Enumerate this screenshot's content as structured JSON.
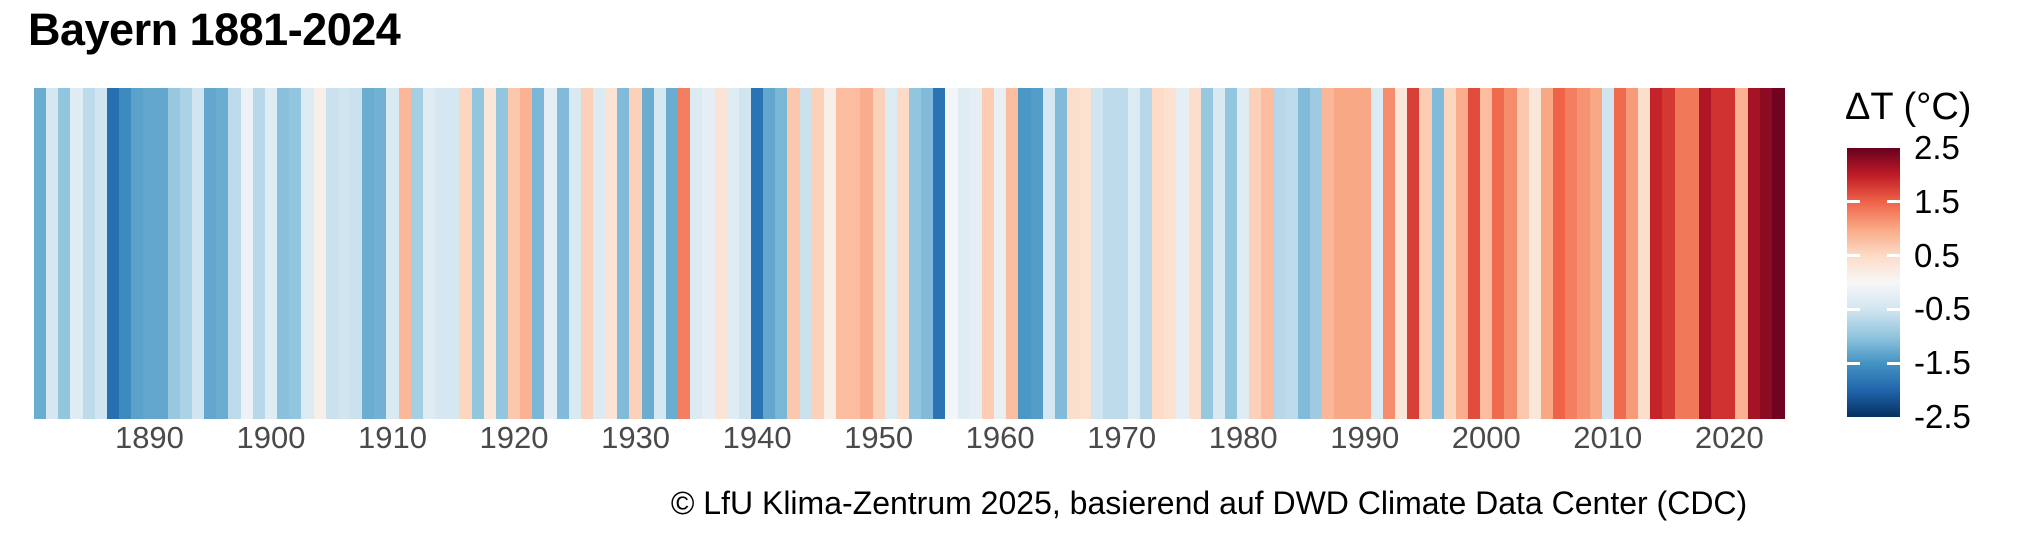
{
  "header": {
    "title": "Bayern 1881-2024"
  },
  "caption": {
    "text": "© LfU Klima-Zentrum 2025, basierend auf DWD Climate Data Center (CDC)"
  },
  "legend": {
    "title": "ΔT (°C)",
    "tick_labels": [
      "2.5",
      "1.5",
      "0.5",
      "-0.5",
      "-1.5",
      "-2.5"
    ],
    "tick_values": [
      2.5,
      1.5,
      0.5,
      -0.5,
      -1.5,
      -2.5
    ]
  },
  "chart_data": {
    "type": "heatmap",
    "subtype": "warming-stripes",
    "title": "Bayern 1881-2024",
    "unit": "°C",
    "value_label": "ΔT (°C)",
    "value_range": [
      -2.5,
      2.5
    ],
    "start_year": 1881,
    "end_year": 2024,
    "x_tick_labels": [
      "1890",
      "1900",
      "1910",
      "1920",
      "1930",
      "1940",
      "1950",
      "1960",
      "1970",
      "1980",
      "1990",
      "2000",
      "2010",
      "2020"
    ],
    "grid": false,
    "legend_position": "right",
    "years": [
      1881,
      1882,
      1883,
      1884,
      1885,
      1886,
      1887,
      1888,
      1889,
      1890,
      1891,
      1892,
      1893,
      1894,
      1895,
      1896,
      1897,
      1898,
      1899,
      1900,
      1901,
      1902,
      1903,
      1904,
      1905,
      1906,
      1907,
      1908,
      1909,
      1910,
      1911,
      1912,
      1913,
      1914,
      1915,
      1916,
      1917,
      1918,
      1919,
      1920,
      1921,
      1922,
      1923,
      1924,
      1925,
      1926,
      1927,
      1928,
      1929,
      1930,
      1931,
      1932,
      1933,
      1934,
      1935,
      1936,
      1937,
      1938,
      1939,
      1940,
      1941,
      1942,
      1943,
      1944,
      1945,
      1946,
      1947,
      1948,
      1949,
      1950,
      1951,
      1952,
      1953,
      1954,
      1955,
      1956,
      1957,
      1958,
      1959,
      1960,
      1961,
      1962,
      1963,
      1964,
      1965,
      1966,
      1967,
      1968,
      1969,
      1970,
      1971,
      1972,
      1973,
      1974,
      1975,
      1976,
      1977,
      1978,
      1979,
      1980,
      1981,
      1982,
      1983,
      1984,
      1985,
      1986,
      1987,
      1988,
      1989,
      1990,
      1991,
      1992,
      1993,
      1994,
      1995,
      1996,
      1997,
      1998,
      1999,
      2000,
      2001,
      2002,
      2003,
      2004,
      2005,
      2006,
      2007,
      2008,
      2009,
      2010,
      2011,
      2012,
      2013,
      2014,
      2015,
      2016,
      2017,
      2018,
      2019,
      2020,
      2021,
      2022,
      2023,
      2024
    ],
    "values": [
      -1.25,
      -0.45,
      -1.0,
      -0.3,
      -0.65,
      -0.5,
      -1.9,
      -1.6,
      -1.35,
      -1.3,
      -1.3,
      -0.95,
      -0.8,
      -0.5,
      -1.3,
      -1.25,
      -0.65,
      -0.15,
      -0.7,
      -0.3,
      -1.05,
      -1.0,
      -0.35,
      0.15,
      -0.55,
      -0.5,
      -0.55,
      -1.25,
      -1.2,
      -0.4,
      0.85,
      -0.85,
      -0.3,
      -0.45,
      -0.45,
      0.55,
      -1.0,
      0.3,
      -1.0,
      0.7,
      0.9,
      -1.15,
      -0.25,
      -1.1,
      -0.4,
      0.6,
      -0.35,
      0.35,
      -1.1,
      0.6,
      -1.25,
      -0.45,
      -1.25,
      1.3,
      -0.35,
      -0.25,
      0.35,
      -0.3,
      -0.5,
      -1.85,
      -1.3,
      -1.15,
      0.7,
      -0.55,
      0.6,
      0.15,
      0.8,
      0.8,
      0.95,
      0.6,
      -0.35,
      0.5,
      -1.0,
      -1.1,
      -1.85,
      -0.05,
      -0.3,
      -0.25,
      0.65,
      -0.2,
      0.8,
      -1.45,
      -1.4,
      -0.45,
      -1.1,
      0.45,
      0.4,
      -0.5,
      -0.65,
      -0.65,
      -0.35,
      -0.7,
      0.5,
      0.4,
      -0.25,
      0.45,
      -0.95,
      -0.4,
      -1.0,
      -0.3,
      0.6,
      0.8,
      -0.7,
      -0.65,
      -1.1,
      -0.9,
      0.85,
      1.0,
      1.0,
      1.0,
      -0.35,
      1.2,
      0.3,
      1.75,
      0.65,
      -1.1,
      0.55,
      0.95,
      1.65,
      0.8,
      1.45,
      1.2,
      0.7,
      0.3,
      1.0,
      1.5,
      1.3,
      1.15,
      1.0,
      -0.5,
      1.45,
      1.1,
      0.45,
      1.95,
      1.8,
      1.35,
      1.35,
      2.1,
      1.85,
      1.85,
      0.9,
      2.15,
      2.3,
      2.45
    ],
    "palette": {
      "name": "RdBu-diverging",
      "anchors": [
        {
          "value": -2.5,
          "color": "#053061"
        },
        {
          "value": -2.0,
          "color": "#2166ac"
        },
        {
          "value": -1.5,
          "color": "#4393c3"
        },
        {
          "value": -1.0,
          "color": "#92c5de"
        },
        {
          "value": -0.5,
          "color": "#d1e5f0"
        },
        {
          "value": 0.0,
          "color": "#f7f7f7"
        },
        {
          "value": 0.5,
          "color": "#fddbc7"
        },
        {
          "value": 1.0,
          "color": "#f9a885"
        },
        {
          "value": 1.5,
          "color": "#ef6347"
        },
        {
          "value": 2.0,
          "color": "#c01b26"
        },
        {
          "value": 2.5,
          "color": "#67001f"
        }
      ]
    },
    "axis_label_color": "#4a4a4a",
    "title_color": "#000000"
  }
}
